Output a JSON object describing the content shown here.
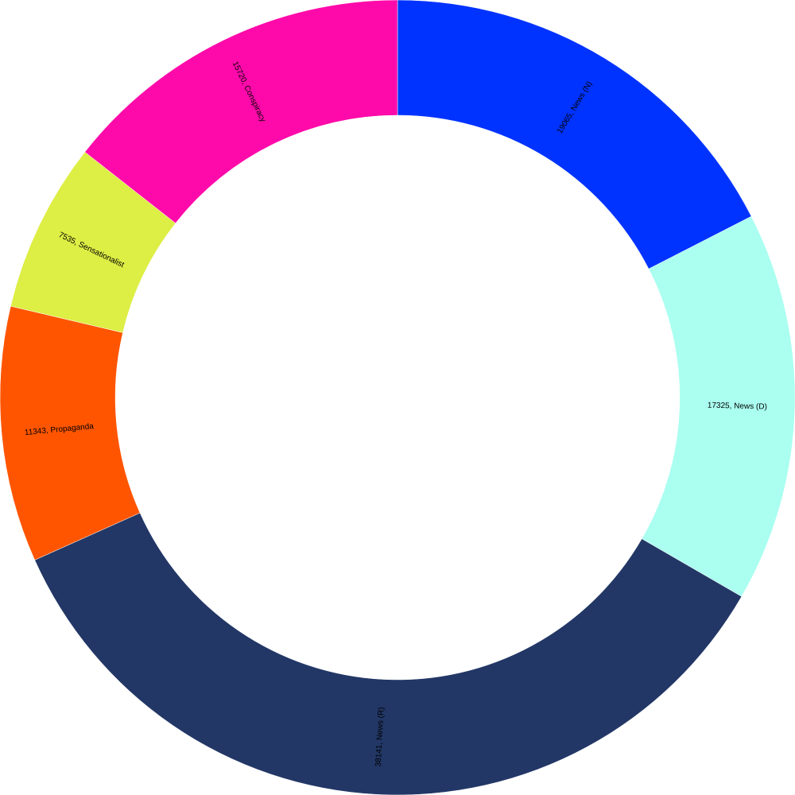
{
  "chart_data": {
    "type": "donut",
    "categories": [
      "News (N)",
      "News (D)",
      "News (R)",
      "Propaganda",
      "Sensationalist",
      "Conspiracy"
    ],
    "values": [
      19065,
      17325,
      38141,
      11343,
      7535,
      15720
    ],
    "value_labels": [
      "19065, News (N)",
      "17325, News (D)",
      "38141, News (R)",
      "11343, Propaganda",
      "7535, Sensationalist",
      "15720, Conspiracy"
    ],
    "colors": [
      "#0033ff",
      "#aafff0",
      "#223766",
      "#ff5500",
      "#ddee44",
      "#ff0aaa"
    ]
  }
}
